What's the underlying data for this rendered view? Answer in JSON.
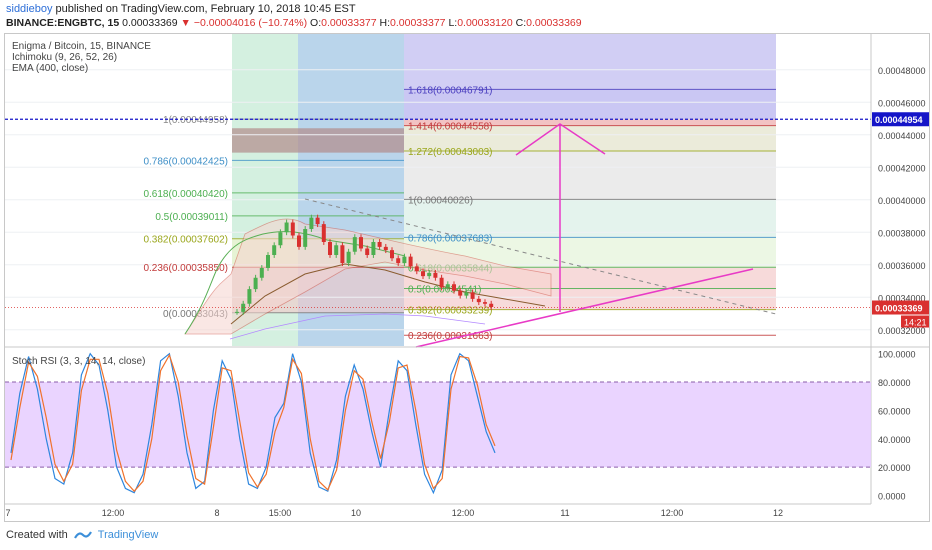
{
  "header": {
    "user": "siddieboy",
    "published": "published on TradingView.com, February 10, 2018 10:45 EST",
    "symbol": "BINANCE:ENGBTC, 15",
    "last": "0.00033369",
    "change_arrow": "▼",
    "change": "−0.00004016 (−10.74%)",
    "o_label": "O:",
    "o": "0.00033377",
    "h_label": "H:",
    "h": "0.00033377",
    "l_label": "L:",
    "l": "0.00033120",
    "c_label": "C:",
    "c": "0.00033369"
  },
  "legend": {
    "title": "Enigma / Bitcoin, 15, BINANCE",
    "ichimoku": "Ichimoku (9, 26, 52, 26)",
    "ema": "EMA (400, close)",
    "rsi": "Stoch RSI (3, 3, 14, 14, close)"
  },
  "footer": {
    "created": "Created with",
    "brand": "TradingView"
  },
  "colors": {
    "accent": "#2e6fd8",
    "down": "#d9302f",
    "rsi_k": "#2e86de",
    "rsi_d": "#f0722c",
    "rsi_band": "#e6ccff"
  },
  "chart_data": [
    {
      "type": "candlestick",
      "title": "Enigma / Bitcoin, 15, BINANCE",
      "ylim": [
        0.00031,
        0.000502
      ],
      "y_ticks": [
        "0.00048000",
        "0.00046000",
        "0.00044000",
        "0.00042000",
        "0.00040000",
        "0.00038000",
        "0.00036000",
        "0.00034000",
        "0.00032000"
      ],
      "x_ticks": [
        "7",
        "12:00",
        "8",
        "15:00",
        "10",
        "12:00",
        "11",
        "12:00",
        "12"
      ],
      "last_price": "0.00033369",
      "line_price": "0.00044954",
      "countdown": "14:21",
      "fib_levels_right": [
        {
          "label": "1.618(0.00046791)",
          "value": 0.00046791,
          "color": "#4b3fbf"
        },
        {
          "label": "1.414(0.00044558)",
          "value": 0.00044558,
          "color": "#c23b3b"
        },
        {
          "label": "1.272(0.00043003)",
          "value": 0.00043003,
          "color": "#9aa61b"
        },
        {
          "label": "1(0.00040026)",
          "value": 0.00040026,
          "color": "#777777"
        },
        {
          "label": "0.786(0.00037683)",
          "value": 0.00037683,
          "color": "#3e8fc7"
        },
        {
          "label": "0.618(0.00035844)",
          "value": 0.00035844,
          "color": "#4caf50"
        },
        {
          "label": "0.5(0.00034541)",
          "value": 0.00034541,
          "color": "#4caf50"
        },
        {
          "label": "0.382(0.00033239)",
          "value": 0.00033239,
          "color": "#9aa61b"
        },
        {
          "label": "0.236(0.00031663)",
          "value": 0.00031663,
          "color": "#c23b3b"
        }
      ],
      "fib_levels_left": [
        {
          "label": "1(0.00044958)",
          "value": 0.00044958,
          "color": "#888888"
        },
        {
          "label": "0.786(0.00042425)",
          "value": 0.00042425,
          "color": "#3e8fc7"
        },
        {
          "label": "0.618(0.00040420)",
          "value": 0.0004042,
          "color": "#4caf50"
        },
        {
          "label": "0.5(0.00039011)",
          "value": 0.00039011,
          "color": "#4caf50"
        },
        {
          "label": "0.382(0.00037602)",
          "value": 0.00037602,
          "color": "#9aa61b"
        },
        {
          "label": "0.236(0.00035850)",
          "value": 0.0003585,
          "color": "#c23b3b"
        },
        {
          "label": "0(0.00033043)",
          "value": 0.00033043,
          "color": "#777777"
        }
      ],
      "price_closes": [
        0.000331,
        0.000336,
        0.000345,
        0.000352,
        0.000358,
        0.000366,
        0.000372,
        0.00038,
        0.000386,
        0.000378,
        0.000371,
        0.000382,
        0.000389,
        0.000385,
        0.000374,
        0.000366,
        0.000372,
        0.000361,
        0.000368,
        0.000377,
        0.00037,
        0.000366,
        0.000374,
        0.000371,
        0.000369,
        0.000364,
        0.000361,
        0.000365,
        0.000359,
        0.000356,
        0.000353,
        0.000355,
        0.000352,
        0.000346,
        0.000348,
        0.000344,
        0.000341,
        0.000343,
        0.000339,
        0.000337,
        0.000336,
        0.000334
      ]
    },
    {
      "type": "line",
      "title": "Stoch RSI (3, 3, 14, 14, close)",
      "ylim": [
        -6,
        104
      ],
      "y_ticks": [
        "100.0000",
        "80.0000",
        "60.0000",
        "40.0000",
        "20.0000",
        "0.0000"
      ],
      "bands": [
        20,
        80
      ],
      "series": [
        {
          "values": [
            30,
            72,
            98,
            75,
            40,
            12,
            8,
            30,
            85,
            100,
            92,
            60,
            20,
            5,
            2,
            15,
            50,
            95,
            100,
            70,
            30,
            5,
            10,
            60,
            95,
            82,
            40,
            8,
            5,
            20,
            55,
            65,
            100,
            80,
            30,
            6,
            3,
            25,
            70,
            92,
            75,
            45,
            20,
            60,
            95,
            88,
            50,
            15,
            2,
            18,
            85,
            100,
            95,
            70,
            45,
            30
          ]
        },
        {
          "values": [
            25,
            62,
            94,
            84,
            55,
            22,
            10,
            22,
            74,
            96,
            96,
            72,
            32,
            10,
            3,
            10,
            40,
            88,
            99,
            80,
            42,
            12,
            8,
            48,
            90,
            88,
            52,
            16,
            6,
            15,
            45,
            62,
            96,
            86,
            40,
            10,
            4,
            18,
            60,
            88,
            82,
            52,
            26,
            52,
            90,
            92,
            60,
            22,
            5,
            12,
            75,
            98,
            97,
            78,
            50,
            35
          ]
        }
      ]
    }
  ]
}
